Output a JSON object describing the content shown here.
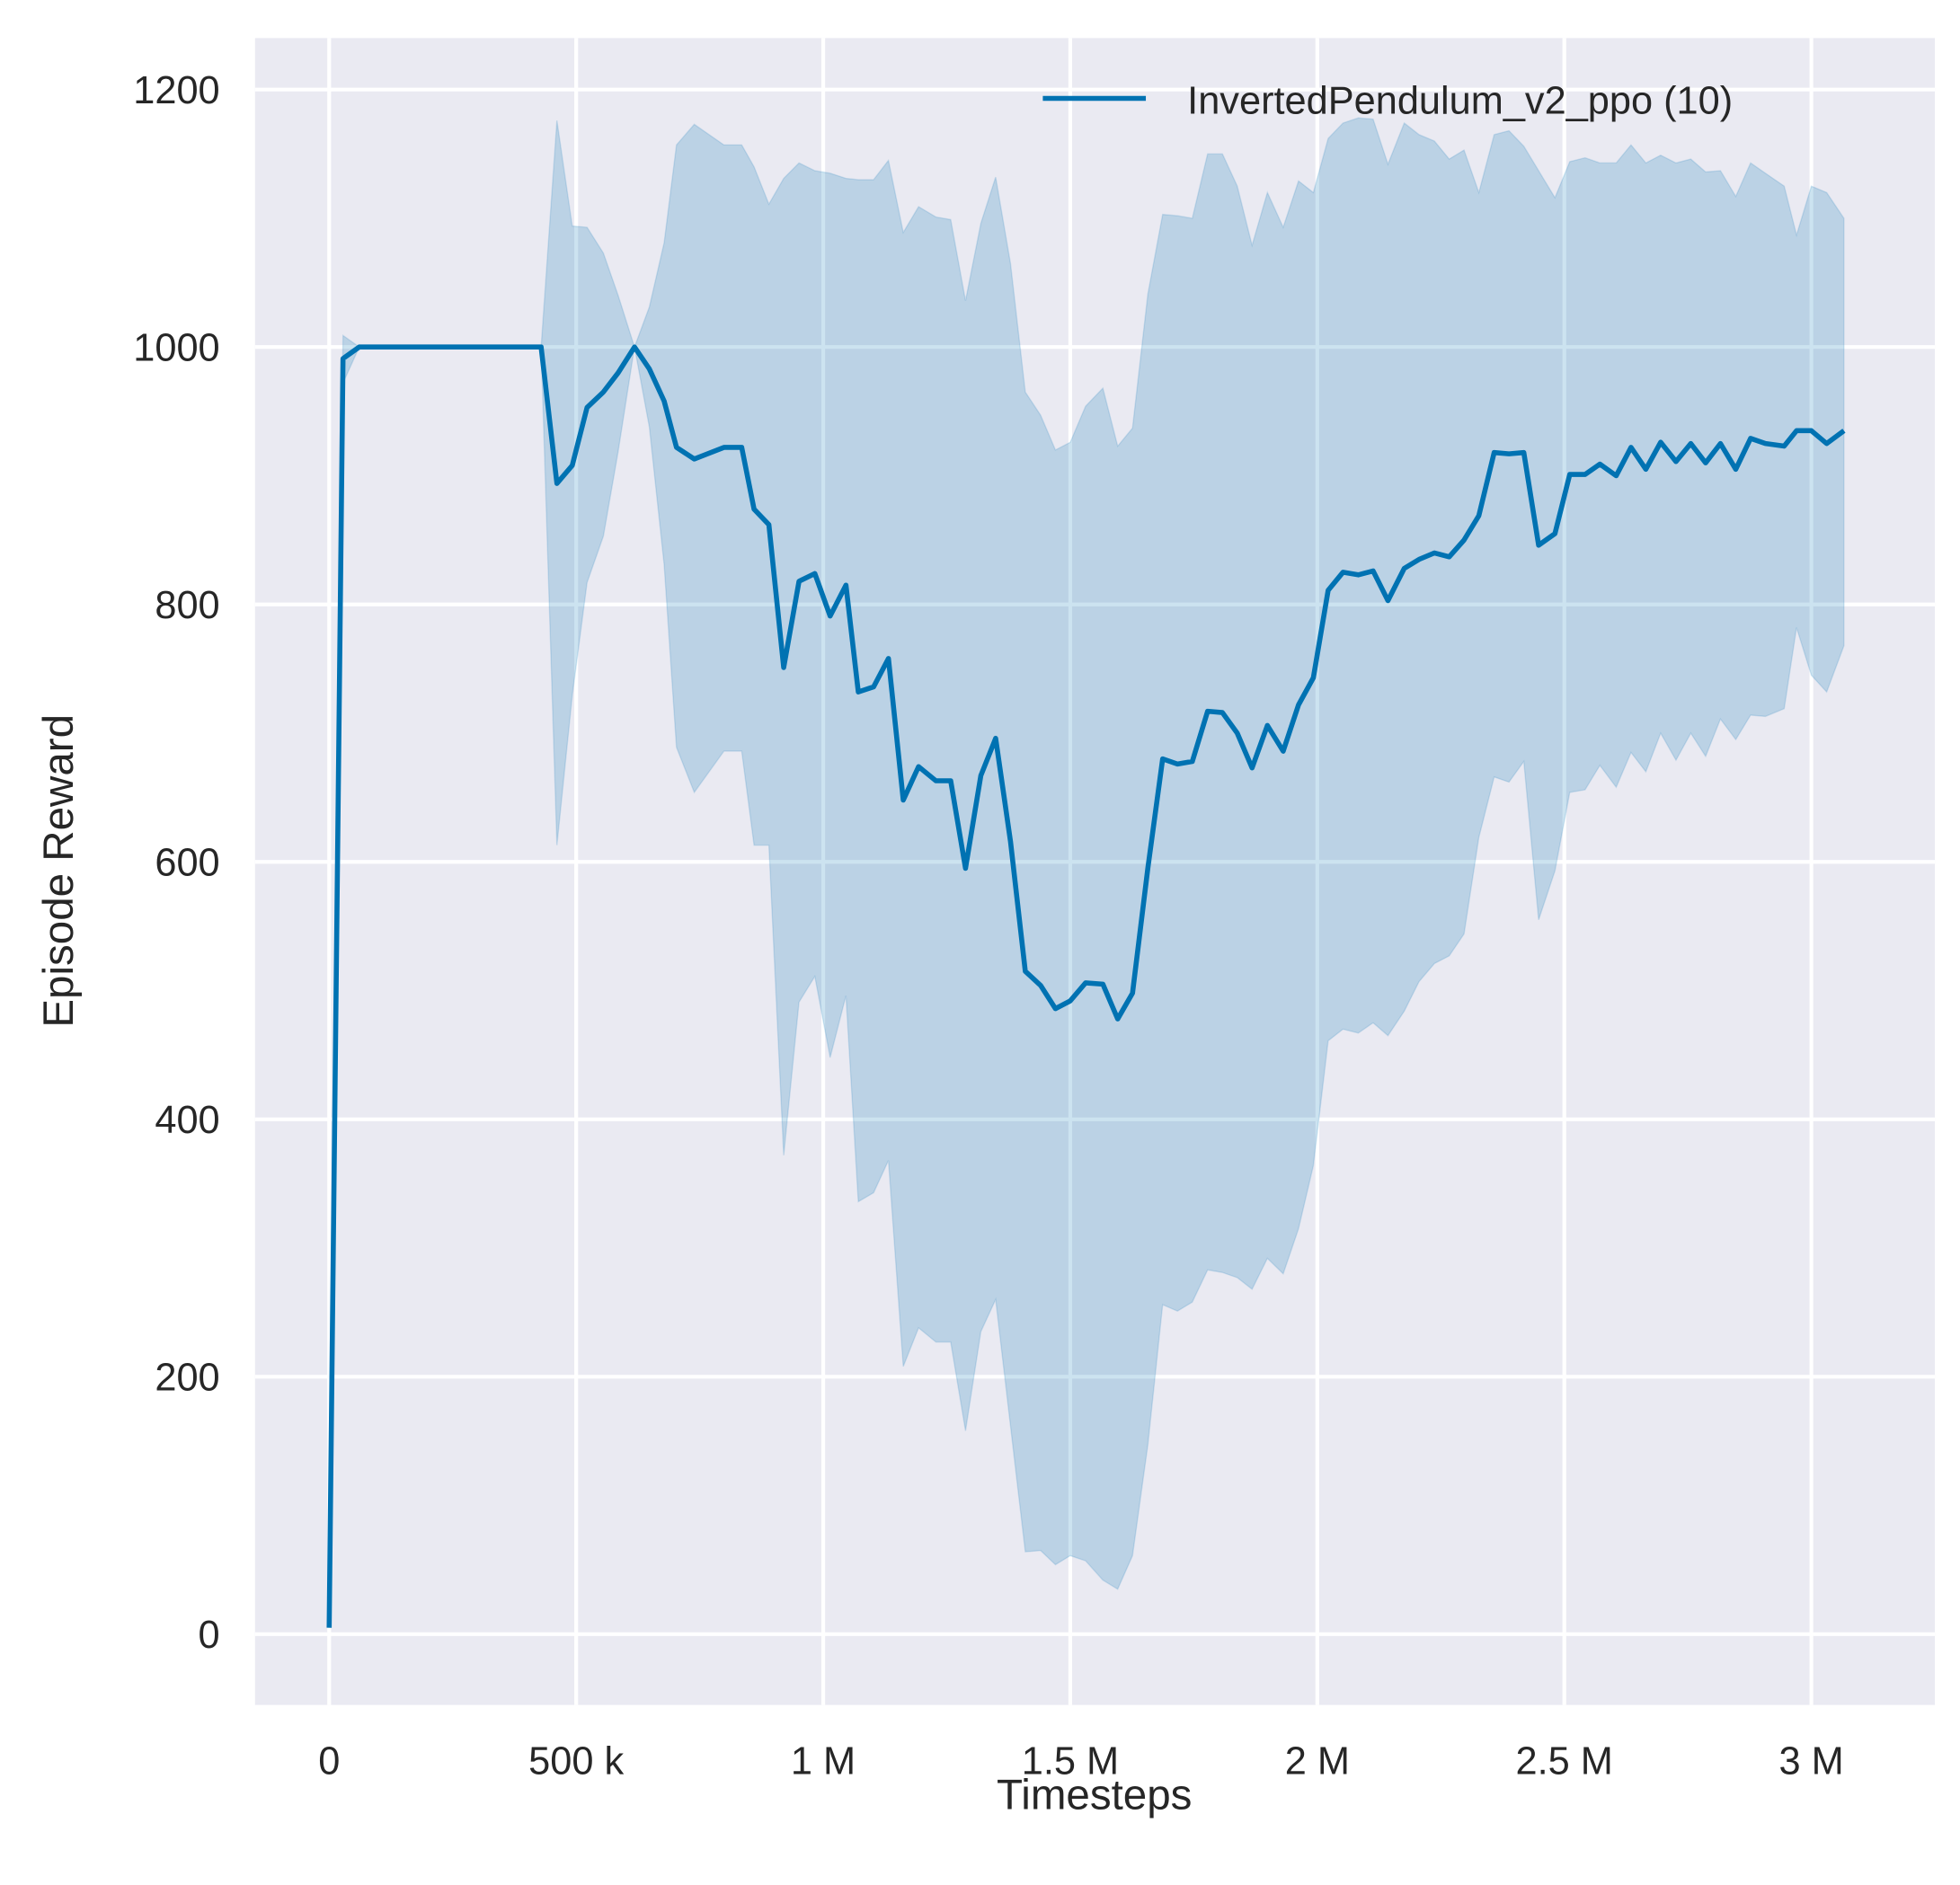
{
  "chart_data": {
    "type": "line",
    "title": "",
    "xlabel": "Timesteps",
    "ylabel": "Episode Reward",
    "xlim": [
      -150000,
      3250000
    ],
    "ylim": [
      -55,
      1240
    ],
    "x_ticks": [
      0,
      500000,
      1000000,
      1500000,
      2000000,
      2500000,
      3000000
    ],
    "x_tick_labels": [
      "0",
      "500 k",
      "1 M",
      "1.5 M",
      "2 M",
      "2.5 M",
      "3 M"
    ],
    "y_ticks": [
      0,
      200,
      400,
      600,
      800,
      1000,
      1200
    ],
    "y_tick_labels": [
      "0",
      "200",
      "400",
      "600",
      "800",
      "1000",
      "1200"
    ],
    "grid": true,
    "legend_position": "top-right",
    "colors": {
      "line": "#0072b2",
      "band": "#0072b2",
      "background": "#eaeaf2",
      "grid": "#ffffff"
    },
    "series": [
      {
        "name": "InvertedPendulum_v2_ppo (10)",
        "x": [
          0,
          28000,
          61000,
          429000,
          461000,
          492000,
          522000,
          555000,
          585000,
          618000,
          648000,
          678000,
          703000,
          739000,
          799000,
          835000,
          860000,
          890000,
          920000,
          951000,
          983000,
          1014000,
          1046000,
          1071000,
          1102000,
          1132000,
          1162000,
          1193000,
          1228000,
          1258000,
          1288000,
          1319000,
          1349000,
          1379000,
          1409000,
          1440000,
          1470000,
          1500000,
          1531000,
          1566000,
          1596000,
          1626000,
          1657000,
          1687000,
          1717000,
          1747000,
          1778000,
          1808000,
          1838000,
          1868000,
          1899000,
          1931000,
          1962000,
          1992000,
          2022000,
          2052000,
          2083000,
          2113000,
          2143000,
          2176000,
          2206000,
          2237000,
          2267000,
          2297000,
          2327000,
          2358000,
          2388000,
          2418000,
          2448000,
          2481000,
          2511000,
          2542000,
          2572000,
          2605000,
          2635000,
          2665000,
          2695000,
          2726000,
          2756000,
          2786000,
          2816000,
          2847000,
          2877000,
          2907000,
          2945000,
          2970000,
          3000000,
          3031000,
          3066000
        ],
        "mean": [
          5,
          991,
          1000,
          1000,
          894,
          908,
          953,
          965,
          980,
          1000,
          983,
          958,
          922,
          913,
          922,
          922,
          874,
          862,
          751,
          818,
          824,
          791,
          815,
          732,
          736,
          758,
          648,
          674,
          663,
          663,
          595,
          667,
          696,
          616,
          515,
          504,
          486,
          492,
          506,
          505,
          478,
          498,
          595,
          680,
          676,
          678,
          717,
          716,
          700,
          673,
          706,
          686,
          722,
          743,
          811,
          825,
          823,
          826,
          803,
          828,
          835,
          840,
          837,
          850,
          869,
          918,
          917,
          918,
          846,
          855,
          901,
          901,
          909,
          900,
          922,
          905,
          926,
          911,
          925,
          910,
          925,
          905,
          929,
          925,
          923,
          935,
          935,
          925,
          935
        ],
        "upper": [
          5,
          1009,
          1000,
          1000,
          1176,
          1094,
          1093,
          1073,
          1040,
          1000,
          1031,
          1081,
          1157,
          1173,
          1157,
          1157,
          1140,
          1111,
          1131,
          1143,
          1137,
          1135,
          1131,
          1130,
          1130,
          1145,
          1089,
          1109,
          1101,
          1099,
          1036,
          1096,
          1132,
          1065,
          965,
          947,
          920,
          926,
          954,
          968,
          923,
          937,
          1041,
          1103,
          1102,
          1100,
          1150,
          1150,
          1125,
          1079,
          1120,
          1093,
          1129,
          1120,
          1162,
          1174,
          1178,
          1177,
          1142,
          1174,
          1165,
          1160,
          1146,
          1153,
          1120,
          1165,
          1168,
          1156,
          1137,
          1116,
          1144,
          1147,
          1143,
          1143,
          1157,
          1143,
          1149,
          1143,
          1146,
          1136,
          1137,
          1117,
          1143,
          1135,
          1125,
          1087,
          1125,
          1120,
          1100
        ],
        "lower": [
          5,
          972,
          1000,
          1000,
          613,
          729,
          817,
          853,
          919,
          1000,
          938,
          831,
          689,
          654,
          686,
          686,
          613,
          613,
          372,
          491,
          511,
          448,
          496,
          336,
          343,
          368,
          208,
          238,
          227,
          227,
          158,
          235,
          260,
          162,
          64,
          65,
          54,
          61,
          57,
          42,
          35,
          61,
          147,
          256,
          251,
          258,
          283,
          281,
          277,
          268,
          292,
          280,
          315,
          364,
          461,
          470,
          467,
          475,
          465,
          484,
          507,
          521,
          527,
          544,
          619,
          666,
          662,
          678,
          555,
          593,
          654,
          656,
          675,
          658,
          685,
          670,
          700,
          679,
          700,
          682,
          711,
          695,
          714,
          713,
          719,
          782,
          745,
          732,
          768
        ]
      }
    ]
  }
}
